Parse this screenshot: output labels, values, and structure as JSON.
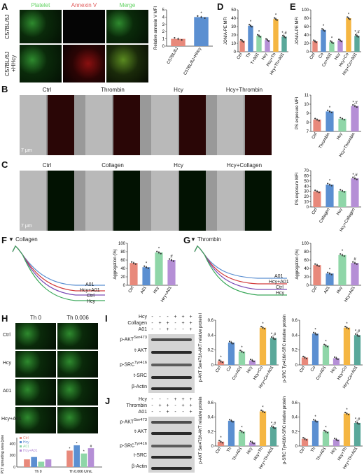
{
  "panel_letters": [
    "A",
    "B",
    "C",
    "D",
    "E",
    "F",
    "G",
    "H",
    "I",
    "J"
  ],
  "panelA": {
    "col_labels": [
      "Platelet",
      "Annexin V",
      "Merge"
    ],
    "col_colors": [
      "#5fd15f",
      "#e05a5a",
      "#5fd15f"
    ],
    "row_labels": [
      "C57BL/6J",
      "C57BL/6J +HHcy"
    ]
  },
  "panelB": {
    "col_labels": [
      "Ctrl",
      "Thrombin",
      "Hcy",
      "Hcy+Thrombin"
    ],
    "scale": "7 μm"
  },
  "panelC": {
    "col_labels": [
      "Ctrl",
      "Collagen",
      "Hcy",
      "Hcy+Collagen"
    ],
    "scale": "7 μm"
  },
  "panelF": {
    "arrow_label": "Collagen",
    "trace_labels": [
      "A01",
      "Hcy+A01",
      "Ctrl",
      "Hcy"
    ]
  },
  "panelG": {
    "arrow_label": "Thrombin",
    "trace_labels": [
      "A01",
      "Hcy+A01",
      "Ctrl",
      "Hcy"
    ]
  },
  "panelH": {
    "col_labels": [
      "Th 0",
      "Th 0.006"
    ],
    "row_labels": [
      "Ctrl",
      "Hcy",
      "A01",
      "Hcy+A01"
    ]
  },
  "blotI": {
    "treat_rows": [
      {
        "label": "Hcy",
        "signs": [
          "-",
          "-",
          "-",
          "+",
          "+",
          "+"
        ]
      },
      {
        "label": "Collagen",
        "signs": [
          "-",
          "+",
          "+",
          "-",
          "+",
          "+"
        ]
      },
      {
        "label": "A01",
        "signs": [
          "-",
          "-",
          "+",
          "-",
          "-",
          "+"
        ]
      }
    ],
    "band_labels": [
      "p-AKT",
      "t-AKT",
      "p-SRC",
      "t-SRC",
      "β-Actin"
    ],
    "band_sups": [
      "Ser473",
      "",
      "Tyr416",
      "",
      ""
    ]
  },
  "blotJ": {
    "treat_rows": [
      {
        "label": "Hcy",
        "signs": [
          "-",
          "-",
          "-",
          "+",
          "+",
          "+"
        ]
      },
      {
        "label": "Thrombin",
        "signs": [
          "-",
          "+",
          "+",
          "-",
          "+",
          "+"
        ]
      },
      {
        "label": "A01",
        "signs": [
          "-",
          "-",
          "+",
          "-",
          "-",
          "+"
        ]
      }
    ],
    "band_labels": [
      "p-AKT",
      "t-AKT",
      "p-SRC",
      "t-SRC",
      "β-Actin"
    ],
    "band_sups": [
      "Ser473",
      "",
      "Tyr416",
      "",
      ""
    ]
  },
  "chart_data": [
    {
      "id": "A",
      "type": "bar",
      "categories": [
        "C57BL/6J",
        "C57BL/6J+HHcy"
      ],
      "values": [
        1.0,
        4.0
      ],
      "colors": [
        "#e8897b",
        "#5b8fd1"
      ],
      "ylabel": "Relative annexin V MFI",
      "ylim": [
        0,
        5
      ],
      "yticks": [
        0,
        1,
        2,
        3,
        4,
        5
      ],
      "marks": [
        "",
        "*"
      ]
    },
    {
      "id": "D",
      "type": "bar",
      "categories": [
        "Ctrl",
        "Th",
        "T+A01",
        "Hcy",
        "Hcy+Th",
        "Hcy+Th+A01"
      ],
      "values": [
        13,
        31,
        19,
        14,
        39,
        18
      ],
      "colors": [
        "#e8897b",
        "#5b8fd1",
        "#8fd6a8",
        "#b58fd6",
        "#f5b642",
        "#5aa89a"
      ],
      "ylabel": "JON/A-PE MFI",
      "ylim": [
        0,
        50
      ],
      "yticks": [
        0,
        10,
        20,
        30,
        40,
        50
      ],
      "marks": [
        "",
        "*",
        "*",
        "",
        "*",
        "*,#"
      ]
    },
    {
      "id": "E1",
      "type": "bar",
      "categories": [
        "Ctrl",
        "Co",
        "Co+A01",
        "Hcy",
        "Hcy+Co",
        "Hcy+Co+A01"
      ],
      "values": [
        25,
        52,
        23,
        27,
        80,
        38
      ],
      "colors": [
        "#e8897b",
        "#5b8fd1",
        "#8fd6a8",
        "#b58fd6",
        "#f5b642",
        "#5aa89a"
      ],
      "ylabel": "JON/A-PE MFI",
      "ylim": [
        0,
        100
      ],
      "yticks": [
        0,
        20,
        40,
        60,
        80,
        100
      ],
      "marks": [
        "",
        "*",
        "*",
        "",
        "*",
        "*,#"
      ]
    },
    {
      "id": "E2",
      "type": "bar",
      "categories": [
        "Ctrl",
        "Thrombin",
        "Hcy",
        "Hcy+Thrombin"
      ],
      "values": [
        8.3,
        9.2,
        8.4,
        9.8
      ],
      "colors": [
        "#e8897b",
        "#5b8fd1",
        "#8fd6a8",
        "#b58fd6"
      ],
      "ylabel": "PS exposure MFI",
      "ylim": [
        7,
        11
      ],
      "yticks": [
        7,
        8,
        9,
        10,
        11
      ],
      "marks": [
        "",
        "*",
        "",
        "*,#"
      ]
    },
    {
      "id": "E3",
      "type": "bar",
      "categories": [
        "Ctrl",
        "Collagen",
        "Hcy",
        "Hcy+Collagen"
      ],
      "values": [
        30,
        43,
        31,
        55
      ],
      "colors": [
        "#e8897b",
        "#5b8fd1",
        "#8fd6a8",
        "#b58fd6"
      ],
      "ylabel": "PS exposure MFI",
      "ylim": [
        0,
        70
      ],
      "yticks": [
        0,
        10,
        20,
        30,
        40,
        50,
        60,
        70
      ],
      "marks": [
        "",
        "*",
        "",
        "*,#"
      ]
    },
    {
      "id": "F",
      "type": "bar",
      "categories": [
        "Ctrl",
        "A01",
        "Hcy",
        "Hcy+A01"
      ],
      "values": [
        53,
        43,
        78,
        60
      ],
      "colors": [
        "#e8897b",
        "#5b8fd1",
        "#8fd6a8",
        "#b58fd6"
      ],
      "ylabel": "Aggregation (%)",
      "ylim": [
        0,
        100
      ],
      "yticks": [
        0,
        20,
        40,
        60,
        80,
        100
      ],
      "marks": [
        "",
        "*",
        "*",
        "#"
      ]
    },
    {
      "id": "G",
      "type": "bar",
      "categories": [
        "Ctrl",
        "A01",
        "Hcy",
        "Hcy+A01"
      ],
      "values": [
        48,
        28,
        72,
        53
      ],
      "colors": [
        "#e8897b",
        "#5b8fd1",
        "#8fd6a8",
        "#b58fd6"
      ],
      "ylabel": "Aggregation (%)",
      "ylim": [
        0,
        100
      ],
      "yticks": [
        0,
        20,
        40,
        60,
        80,
        100
      ],
      "marks": [
        "",
        "*",
        "*",
        "#"
      ]
    },
    {
      "id": "H",
      "type": "bar",
      "group_labels": [
        "Th 0",
        "Th 0.006 U/mL"
      ],
      "series": [
        {
          "name": "Ctrl",
          "values": [
            130,
            280
          ]
        },
        {
          "name": "Hcy",
          "values": [
            170,
            370
          ]
        },
        {
          "name": "A01",
          "values": [
            90,
            230
          ]
        },
        {
          "name": "Hcy+A01",
          "values": [
            130,
            320
          ]
        }
      ],
      "colors": [
        "#e8897b",
        "#5b8fd1",
        "#8fd6a8",
        "#b58fd6"
      ],
      "ylabel": "PLT spreading area (pixels)",
      "ylim": [
        0,
        500
      ],
      "yticks": [
        0,
        100,
        200,
        300,
        400,
        500
      ],
      "marks": [
        [
          "",
          "",
          "",
          ""
        ],
        [
          "*",
          "*",
          "*",
          "#"
        ]
      ]
    },
    {
      "id": "I1",
      "type": "bar",
      "categories": [
        "Ctrl",
        "Co",
        "Co+A01",
        "Hcy",
        "Hcy+Co",
        "Hcy+Co+A01"
      ],
      "values": [
        0.05,
        0.3,
        0.18,
        0.06,
        0.5,
        0.36
      ],
      "colors": [
        "#e8897b",
        "#5b8fd1",
        "#8fd6a8",
        "#b58fd6",
        "#f5b642",
        "#5aa89a"
      ],
      "ylabel": "p-AKT Ser473/t-AKT relative protein levels",
      "ylim": [
        0,
        0.6
      ],
      "yticks": [
        0.0,
        0.2,
        0.4,
        0.6
      ],
      "marks": [
        "*",
        "",
        "*",
        "",
        "*",
        "*,#"
      ]
    },
    {
      "id": "I2",
      "type": "bar",
      "categories": [
        "Ctrl",
        "Co",
        "Co+A01",
        "Hcy",
        "Hcy+Co",
        "Hcy+Co+A01"
      ],
      "values": [
        0.1,
        0.42,
        0.26,
        0.09,
        0.5,
        0.4
      ],
      "colors": [
        "#e8897b",
        "#5b8fd1",
        "#8fd6a8",
        "#b58fd6",
        "#f5b642",
        "#5aa89a"
      ],
      "ylabel": "p-SRC Tyr416/t-SRC relative protein levels",
      "ylim": [
        0,
        0.6
      ],
      "yticks": [
        0.0,
        0.2,
        0.4,
        0.6
      ],
      "marks": [
        "",
        "*",
        "*",
        "",
        "*",
        "*,#"
      ]
    },
    {
      "id": "J1",
      "type": "bar",
      "categories": [
        "Ctrl",
        "Th",
        "Th+A01",
        "Hcy",
        "Hcy+Th",
        "Hcy+Th+A01"
      ],
      "values": [
        0.06,
        0.35,
        0.2,
        0.05,
        0.48,
        0.26
      ],
      "colors": [
        "#e8897b",
        "#5b8fd1",
        "#8fd6a8",
        "#b58fd6",
        "#f5b642",
        "#5aa89a"
      ],
      "ylabel": "p-AKT Ser473/t-AKT relative protein levels",
      "ylim": [
        0,
        0.6
      ],
      "yticks": [
        0.0,
        0.2,
        0.4,
        0.6
      ],
      "marks": [
        "*",
        "",
        "*",
        "",
        "*",
        "*,#"
      ]
    },
    {
      "id": "J2",
      "type": "bar",
      "categories": [
        "Ctrl",
        "Th",
        "Th+A01",
        "Hcy",
        "Hcy+Th",
        "Hcy+Th+A01"
      ],
      "values": [
        0.1,
        0.35,
        0.2,
        0.09,
        0.45,
        0.32
      ],
      "colors": [
        "#e8897b",
        "#5b8fd1",
        "#8fd6a8",
        "#b58fd6",
        "#f5b642",
        "#5aa89a"
      ],
      "ylabel": "p-SRC Tyr416/t-SRC relative protein levels",
      "ylim": [
        0,
        0.6
      ],
      "yticks": [
        0.0,
        0.2,
        0.4,
        0.6
      ],
      "marks": [
        "",
        "*",
        "*",
        "",
        "*",
        "*,#"
      ]
    }
  ]
}
